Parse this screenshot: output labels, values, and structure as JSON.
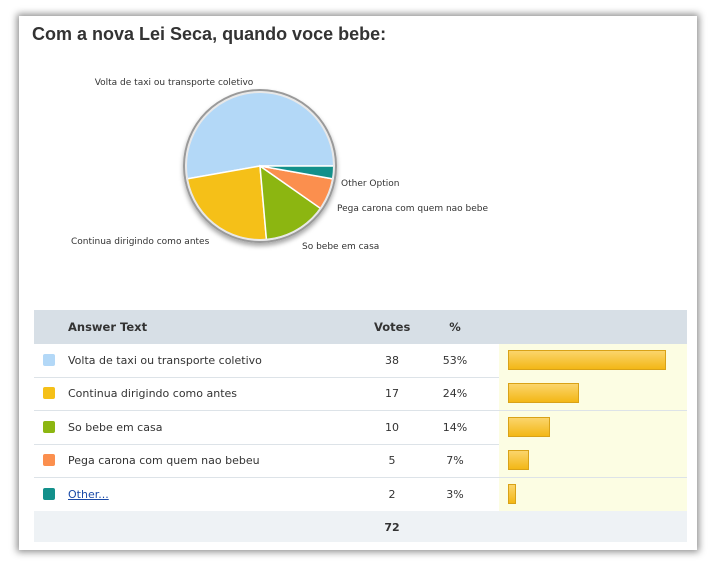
{
  "poll": {
    "title": "Com a nova Lei Seca, quando voce bebe:"
  },
  "table": {
    "headers": {
      "answer": "Answer Text",
      "votes": "Votes",
      "percent": "%"
    },
    "total": "72"
  },
  "chart_data": {
    "type": "pie",
    "title": "Com a nova Lei Seca, quando voce bebe:",
    "slices": [
      {
        "label": "Volta de taxi ou transporte coletivo",
        "table_label": "Volta de taxi ou transporte coletivo",
        "votes": 38,
        "percent": "53%",
        "color": "#b3d8f7",
        "link": false
      },
      {
        "label": "Continua dirigindo como antes",
        "table_label": "Continua dirigindo como antes",
        "votes": 17,
        "percent": "24%",
        "color": "#f5c018",
        "link": false
      },
      {
        "label": "So bebe em casa",
        "table_label": "So bebe em casa",
        "votes": 10,
        "percent": "14%",
        "color": "#8cb611",
        "link": false
      },
      {
        "label": "Pega carona com quem nao bebe",
        "table_label": "Pega carona com quem nao bebeu",
        "votes": 5,
        "percent": "7%",
        "color": "#fb8f4e",
        "link": false
      },
      {
        "label": "Other Option",
        "table_label": "Other...",
        "votes": 2,
        "percent": "3%",
        "color": "#13908b",
        "link": true
      }
    ]
  }
}
